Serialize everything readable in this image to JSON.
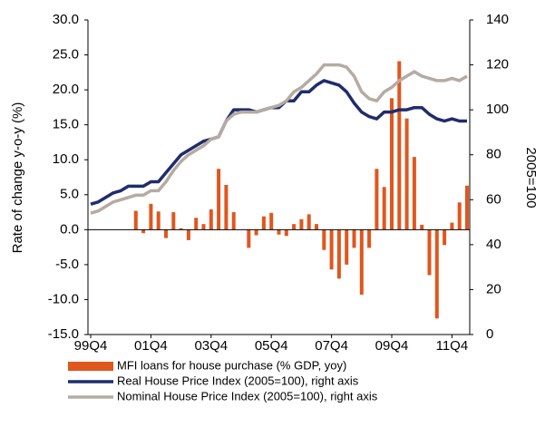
{
  "chart_data": {
    "type": "combo",
    "ylabel": "Rate of change y-o-y (%)",
    "y2label": "2005=100",
    "categories": [
      "99Q4",
      null,
      null,
      null,
      null,
      null,
      null,
      null,
      "01Q4",
      null,
      null,
      null,
      null,
      null,
      null,
      null,
      "03Q4",
      null,
      null,
      null,
      null,
      null,
      null,
      null,
      "05Q4",
      null,
      null,
      null,
      null,
      null,
      null,
      null,
      "07Q4",
      null,
      null,
      null,
      null,
      null,
      null,
      null,
      "09Q4",
      null,
      null,
      null,
      null,
      null,
      null,
      null,
      "11Q4",
      null,
      null
    ],
    "ylim": [
      -15,
      30
    ],
    "yticks": [
      {
        "value": -15,
        "label": "-15.0"
      },
      {
        "value": -10,
        "label": "-10.0"
      },
      {
        "value": -5,
        "label": "-5.0"
      },
      {
        "value": 0,
        "label": "0.0"
      },
      {
        "value": 5,
        "label": "5.0"
      },
      {
        "value": 10,
        "label": "10.0"
      },
      {
        "value": 15,
        "label": "15.0"
      },
      {
        "value": 20,
        "label": "20.0"
      },
      {
        "value": 25,
        "label": "25.0"
      },
      {
        "value": 30,
        "label": "30.0"
      }
    ],
    "y2lim": [
      0,
      140
    ],
    "y2ticks": [
      0,
      20,
      40,
      60,
      80,
      100,
      120,
      140
    ],
    "series": [
      {
        "name": "MFI loans for house purchase (% GDP, yoy)",
        "type": "bar",
        "axis": "y",
        "color": "#e0561e",
        "values": [
          null,
          null,
          null,
          null,
          null,
          null,
          2.7,
          -0.5,
          3.7,
          2.6,
          -1.2,
          2.5,
          0.2,
          -1.5,
          1.7,
          0.8,
          2.9,
          8.7,
          6.4,
          2.5,
          0,
          -2.6,
          -0.8,
          1.9,
          2.4,
          -0.7,
          -0.9,
          0.8,
          1.5,
          2.2,
          0.8,
          -2.9,
          -5.7,
          -7.0,
          -5.0,
          -2.6,
          -9.3,
          -2.6,
          8.7,
          6.1,
          18.8,
          24.1,
          15.9,
          10.4,
          0.7,
          -6.5,
          -12.7,
          -2.2,
          1.0,
          3.9,
          6.3
        ]
      },
      {
        "name": "Real House Price Index (2005=100), right axis",
        "type": "line",
        "axis": "y2",
        "color": "#1f2d6b",
        "values": [
          58,
          59,
          61,
          63,
          64,
          66,
          66,
          66,
          68,
          68,
          72,
          76,
          80,
          82,
          84,
          86,
          87,
          88,
          95,
          100,
          100,
          100,
          99,
          100,
          101,
          101,
          104,
          104,
          108,
          108,
          111,
          113,
          112,
          111,
          108,
          103,
          99,
          97,
          96,
          99,
          99,
          100,
          100,
          101,
          101,
          98,
          96,
          95,
          96,
          95,
          95
        ]
      },
      {
        "name": "Nominal House Price Index (2005=100), right axis",
        "type": "line",
        "axis": "y2",
        "color": "#b5aba3",
        "values": [
          54,
          55,
          57,
          59,
          60,
          61,
          62,
          62,
          64,
          64,
          68,
          73,
          77,
          80,
          82,
          84,
          87,
          88,
          95,
          98,
          99,
          99,
          99,
          100,
          101,
          102,
          104,
          108,
          110,
          113,
          116,
          120,
          120,
          120,
          119,
          115,
          108,
          105,
          104,
          108,
          110,
          113,
          115,
          117,
          115,
          114,
          113,
          113,
          114,
          113,
          115
        ]
      }
    ]
  }
}
